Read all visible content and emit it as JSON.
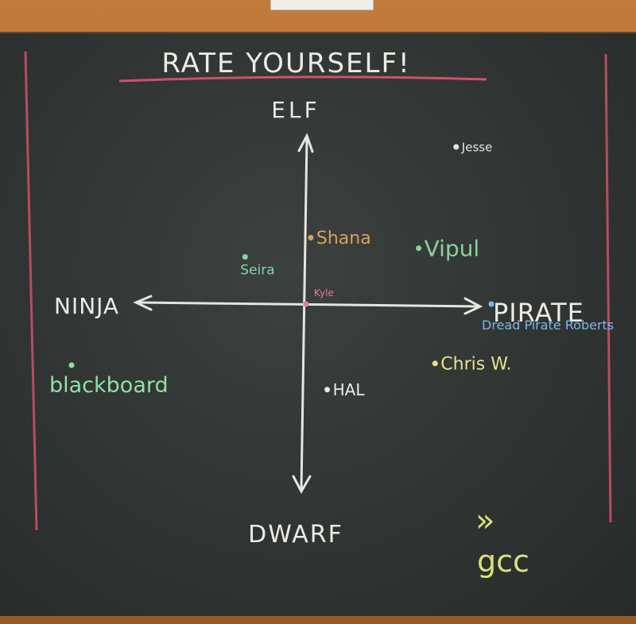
{
  "chart_data": {
    "type": "scatter",
    "title": "RATE YOURSELF!",
    "axes": {
      "top_label": "ELF",
      "bottom_label": "DWARF",
      "left_label": "NINJA",
      "right_label": "PIRATE"
    },
    "xlim": [
      -1,
      1
    ],
    "ylim": [
      -1,
      1
    ],
    "points": [
      {
        "label": "Jesse",
        "x": 0.64,
        "y": 0.9,
        "color": "#e8e6df"
      },
      {
        "label": "Shana",
        "x": 0.02,
        "y": 0.38,
        "color": "#d9a15c"
      },
      {
        "label": "Vipul",
        "x": 0.48,
        "y": 0.32,
        "color": "#8ad19b"
      },
      {
        "label": "Seira",
        "x": -0.26,
        "y": 0.27,
        "color": "#7fd6a8"
      },
      {
        "label": "Kyle",
        "x": 0.0,
        "y": 0.0,
        "color": "#e57aa0"
      },
      {
        "label": "Dread Pirate Roberts",
        "x": 0.79,
        "y": 0.0,
        "color": "#7fb6e6"
      },
      {
        "label": "Chris W.",
        "x": 0.55,
        "y": -0.34,
        "color": "#e7e38a"
      },
      {
        "label": "HAL",
        "x": 0.09,
        "y": -0.49,
        "color": "#ecebe4"
      },
      {
        "label": "blackboard",
        "x": -1.0,
        "y": -0.35,
        "color": "#8fe0a7"
      }
    ],
    "signature": {
      "mark": "»",
      "text": "gcc",
      "color": "#d8e07a"
    },
    "grid": false,
    "legend": "none"
  }
}
